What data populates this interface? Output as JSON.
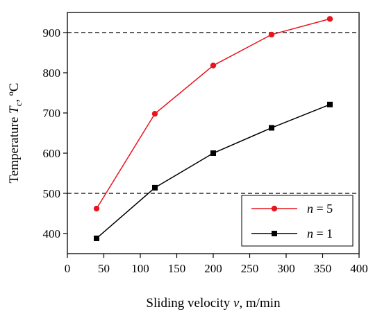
{
  "chart_data": {
    "type": "line",
    "xlabel": {
      "prefix": "Sliding velocity ",
      "var": "v",
      "suffix": ", m/min"
    },
    "ylabel": {
      "prefix": "Temperature ",
      "var": "T",
      "sub": "c",
      "suffix": ", ºC"
    },
    "xlim": [
      0,
      400
    ],
    "ylim": [
      350,
      950
    ],
    "xticks": [
      0,
      50,
      100,
      150,
      200,
      250,
      300,
      350,
      400
    ],
    "yticks": [
      400,
      500,
      600,
      700,
      800,
      900
    ],
    "grid": false,
    "reference_lines": [
      {
        "y": 900,
        "style": "dashed",
        "color": "#000000"
      },
      {
        "y": 500,
        "style": "dashed",
        "color": "#000000"
      }
    ],
    "legend_position": "bottom-right",
    "series": [
      {
        "name": "n = 5",
        "legend": {
          "var": "n",
          "rest": " = 5"
        },
        "color": "#e8141e",
        "marker": "circle",
        "x": [
          40,
          120,
          200,
          280,
          360
        ],
        "y": [
          462,
          698,
          818,
          895,
          934
        ]
      },
      {
        "name": "n = 1",
        "legend": {
          "var": "n",
          "rest": " = 1"
        },
        "color": "#000000",
        "marker": "square",
        "x": [
          40,
          120,
          200,
          280,
          360
        ],
        "y": [
          388,
          514,
          600,
          663,
          721
        ]
      }
    ]
  }
}
